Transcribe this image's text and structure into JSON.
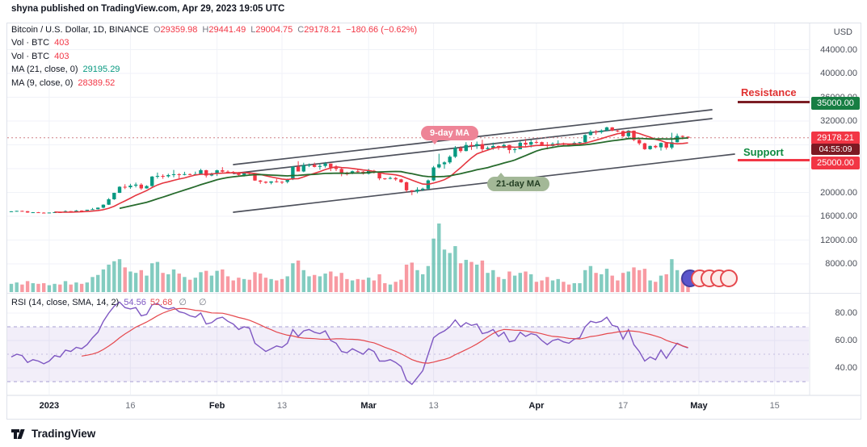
{
  "attribution": "shyna published on TradingView.com, Apr 29, 2023 19:05 UTC",
  "header": {
    "title": "Bitcoin / U.S. Dollar, 1D, BINANCE",
    "ohlc": [
      {
        "k": "O",
        "v": "29359.98"
      },
      {
        "k": "H",
        "v": "29441.49"
      },
      {
        "k": "L",
        "v": "29004.75"
      },
      {
        "k": "C",
        "v": "29178.21"
      }
    ],
    "change": "−180.66 (−0.62%)"
  },
  "legend_rows": [
    {
      "label": "Vol · BTC",
      "value": "403",
      "color": "#f23645"
    },
    {
      "label": "Vol · BTC",
      "value": "403",
      "color": "#f23645"
    },
    {
      "label": "MA (21, close, 0)",
      "value": "29195.29",
      "color": "#089981"
    },
    {
      "label": "MA (9, close, 0)",
      "value": "28389.52",
      "color": "#f23645"
    }
  ],
  "annotations": {
    "ma9_badge": "9-day MA",
    "ma21_badge": "21-day MA",
    "resistance_label": "Resistance",
    "support_label": "Support"
  },
  "price_axis": {
    "unit": "USD",
    "labels": [
      "44000.00",
      "40000.00",
      "36000.00",
      "32000.00",
      "20000.00",
      "16000.00",
      "12000.00",
      "8000.00"
    ],
    "last_price": "29178.21",
    "countdown": "04:55:09",
    "resistance_badge": "35000.00",
    "support_badge": "25000.00"
  },
  "rsi_pane": {
    "legend": "RSI (14, close, SMA, 14, 2)",
    "value": "54.56",
    "signal": "52.68",
    "empties": "∅ ∅",
    "labels": [
      "80.00",
      "60.00",
      "40.00"
    ]
  },
  "time_axis": [
    {
      "t": "2023",
      "d": 0,
      "major": true
    },
    {
      "t": "16",
      "d": 15,
      "major": false
    },
    {
      "t": "Feb",
      "d": 31,
      "major": true
    },
    {
      "t": "13",
      "d": 43,
      "major": false
    },
    {
      "t": "Mar",
      "d": 59,
      "major": true
    },
    {
      "t": "13",
      "d": 71,
      "major": false
    },
    {
      "t": "Apr",
      "d": 90,
      "major": true
    },
    {
      "t": "17",
      "d": 106,
      "major": false
    },
    {
      "t": "May",
      "d": 120,
      "major": true
    },
    {
      "t": "15",
      "d": 134,
      "major": false
    }
  ],
  "footer": {
    "brand": "TradingView"
  },
  "chart_data": {
    "type": "candlestick",
    "title": "Bitcoin / U.S. Dollar, 1D, BINANCE",
    "interval": "1D",
    "start_date": "2022-12-25",
    "price_range": [
      8000,
      44000
    ],
    "price_axis_ticks": [
      44000,
      40000,
      36000,
      32000,
      28000,
      24000,
      20000,
      16000,
      12000,
      8000
    ],
    "columns": [
      "open",
      "high",
      "low",
      "close",
      "volume_rel"
    ],
    "candles": [
      [
        16780,
        16850,
        16720,
        16830,
        12
      ],
      [
        16830,
        16920,
        16790,
        16900,
        14
      ],
      [
        16900,
        16950,
        16800,
        16850,
        11
      ],
      [
        16850,
        16880,
        16580,
        16620,
        16
      ],
      [
        16620,
        16700,
        16560,
        16670,
        13
      ],
      [
        16670,
        16720,
        16600,
        16600,
        12
      ],
      [
        16600,
        16680,
        16520,
        16540,
        13
      ],
      [
        16540,
        16630,
        16500,
        16620,
        10
      ],
      [
        16620,
        16760,
        16550,
        16680,
        12
      ],
      [
        16680,
        16770,
        16600,
        16670,
        11
      ],
      [
        16670,
        16990,
        16650,
        16860,
        16
      ],
      [
        16860,
        16880,
        16750,
        16840,
        11
      ],
      [
        16840,
        17040,
        16790,
        16950,
        14
      ],
      [
        16950,
        17000,
        16820,
        16940,
        12
      ],
      [
        16940,
        17090,
        16910,
        17090,
        14
      ],
      [
        17090,
        17390,
        17080,
        17180,
        22
      ],
      [
        17180,
        17480,
        17130,
        17440,
        25
      ],
      [
        17440,
        18000,
        17310,
        17940,
        33
      ],
      [
        17940,
        19050,
        17890,
        18850,
        40
      ],
      [
        18850,
        19950,
        18750,
        19930,
        45
      ],
      [
        19930,
        21050,
        19890,
        20950,
        48
      ],
      [
        20950,
        21380,
        20560,
        20870,
        36
      ],
      [
        20870,
        21450,
        20610,
        21140,
        30
      ],
      [
        21140,
        21650,
        20850,
        21310,
        28
      ],
      [
        21310,
        21550,
        20430,
        20680,
        32
      ],
      [
        20680,
        21200,
        20650,
        21080,
        24
      ],
      [
        21080,
        22750,
        20900,
        22670,
        42
      ],
      [
        22670,
        23340,
        22330,
        22780,
        44
      ],
      [
        22780,
        23050,
        22300,
        22710,
        28
      ],
      [
        22710,
        23150,
        22480,
        22920,
        26
      ],
      [
        22920,
        23780,
        22550,
        23060,
        33
      ],
      [
        23060,
        23240,
        22350,
        23010,
        27
      ],
      [
        23010,
        23470,
        22870,
        23080,
        22
      ],
      [
        23080,
        23190,
        22890,
        23030,
        18
      ],
      [
        23030,
        23500,
        22960,
        23080,
        21
      ],
      [
        23080,
        23960,
        23070,
        23740,
        29
      ],
      [
        23740,
        23800,
        22500,
        22840,
        31
      ],
      [
        22840,
        23320,
        22720,
        23130,
        24
      ],
      [
        23130,
        23810,
        22760,
        23720,
        31
      ],
      [
        23720,
        24250,
        23370,
        23490,
        33
      ],
      [
        23490,
        23710,
        23190,
        23430,
        23
      ],
      [
        23430,
        23590,
        23240,
        23330,
        17
      ],
      [
        23330,
        23430,
        22750,
        22950,
        21
      ],
      [
        22950,
        23340,
        22680,
        23270,
        19
      ],
      [
        23270,
        23450,
        22880,
        23220,
        18
      ],
      [
        23220,
        23250,
        21950,
        22000,
        29
      ],
      [
        22000,
        22090,
        21450,
        21800,
        27
      ],
      [
        21800,
        21890,
        21480,
        21630,
        21
      ],
      [
        21630,
        21870,
        21360,
        21860,
        19
      ],
      [
        21860,
        22280,
        21650,
        21790,
        17
      ],
      [
        21790,
        21900,
        21420,
        21770,
        19
      ],
      [
        21770,
        22320,
        21530,
        22200,
        23
      ],
      [
        22200,
        24380,
        22080,
        24330,
        42
      ],
      [
        24330,
        25250,
        23830,
        23520,
        46
      ],
      [
        23520,
        24990,
        23400,
        24570,
        32
      ],
      [
        24570,
        24870,
        24250,
        24630,
        23
      ],
      [
        24630,
        25020,
        24200,
        24290,
        25
      ],
      [
        24290,
        24900,
        23810,
        24450,
        23
      ],
      [
        24450,
        25120,
        24170,
        24850,
        27
      ],
      [
        24850,
        24880,
        23580,
        24180,
        30
      ],
      [
        24180,
        24600,
        23600,
        23940,
        23
      ],
      [
        23940,
        24130,
        22720,
        23190,
        28
      ],
      [
        23190,
        23470,
        22850,
        23160,
        19
      ],
      [
        23160,
        23680,
        23070,
        23560,
        17
      ],
      [
        23560,
        23920,
        23180,
        23490,
        19
      ],
      [
        23490,
        23600,
        23020,
        23150,
        18
      ],
      [
        23150,
        23980,
        23020,
        23640,
        21
      ],
      [
        23640,
        23790,
        23180,
        23470,
        17
      ],
      [
        23470,
        23520,
        22060,
        22360,
        26
      ],
      [
        22360,
        22410,
        22130,
        22350,
        13
      ],
      [
        22350,
        22660,
        22210,
        22430,
        11
      ],
      [
        22430,
        22600,
        21950,
        22200,
        15
      ],
      [
        22200,
        22290,
        21620,
        21710,
        18
      ],
      [
        21710,
        21830,
        20050,
        20360,
        40
      ],
      [
        20360,
        20370,
        19550,
        20150,
        43
      ],
      [
        20150,
        20870,
        19870,
        20470,
        32
      ],
      [
        20470,
        20800,
        20250,
        20630,
        26
      ],
      [
        20630,
        22180,
        20450,
        22020,
        38
      ],
      [
        22020,
        24450,
        21900,
        24200,
        78
      ],
      [
        24200,
        26500,
        24050,
        24740,
        100
      ],
      [
        24740,
        25240,
        23980,
        25050,
        62
      ],
      [
        25050,
        26240,
        24800,
        26000,
        57
      ],
      [
        26000,
        27800,
        25790,
        27450,
        67
      ],
      [
        27450,
        27760,
        26680,
        26960,
        42
      ],
      [
        26960,
        28440,
        26900,
        27970,
        47
      ],
      [
        27970,
        28470,
        27150,
        27790,
        44
      ],
      [
        27790,
        28550,
        27320,
        28120,
        40
      ],
      [
        28120,
        28850,
        26830,
        27280,
        46
      ],
      [
        27280,
        27740,
        27050,
        27470,
        28
      ],
      [
        27470,
        28370,
        27170,
        27800,
        32
      ],
      [
        27800,
        27860,
        27150,
        27490,
        22
      ],
      [
        27490,
        28190,
        27420,
        27980,
        19
      ],
      [
        27980,
        28020,
        26550,
        27130,
        30
      ],
      [
        27130,
        27490,
        26640,
        27270,
        24
      ],
      [
        27270,
        28650,
        27250,
        28350,
        28
      ],
      [
        28350,
        29000,
        27700,
        28040,
        30
      ],
      [
        28040,
        28810,
        27560,
        28470,
        26
      ],
      [
        28470,
        28810,
        28160,
        28460,
        15
      ],
      [
        28460,
        28540,
        27870,
        27940,
        17
      ],
      [
        27940,
        28480,
        27250,
        27810,
        22
      ],
      [
        27810,
        28430,
        27670,
        28170,
        17
      ],
      [
        28170,
        28760,
        27820,
        28250,
        19
      ],
      [
        28250,
        28370,
        27750,
        28030,
        15
      ],
      [
        28030,
        28110,
        27790,
        27920,
        11
      ],
      [
        27920,
        28540,
        27880,
        28330,
        13
      ],
      [
        28330,
        28500,
        27930,
        28440,
        13
      ],
      [
        28440,
        29770,
        28190,
        29640,
        32
      ],
      [
        29640,
        30510,
        29580,
        30210,
        38
      ],
      [
        30210,
        30490,
        29680,
        30130,
        28
      ],
      [
        30130,
        30590,
        29880,
        30400,
        26
      ],
      [
        30400,
        31050,
        30290,
        30930,
        34
      ],
      [
        30930,
        30990,
        30270,
        30390,
        24
      ],
      [
        30390,
        30580,
        30130,
        30310,
        17
      ],
      [
        30310,
        30420,
        29280,
        29450,
        28
      ],
      [
        29450,
        30480,
        29110,
        30380,
        30
      ],
      [
        30380,
        30400,
        28620,
        28820,
        36
      ],
      [
        28820,
        29080,
        27960,
        28250,
        32
      ],
      [
        28250,
        28350,
        27150,
        27270,
        34
      ],
      [
        27270,
        27870,
        27170,
        27820,
        17
      ],
      [
        27820,
        27980,
        27410,
        27590,
        15
      ],
      [
        27590,
        28390,
        27040,
        28310,
        24
      ],
      [
        28310,
        28380,
        27210,
        27540,
        26
      ],
      [
        27540,
        30030,
        27250,
        28440,
        48
      ],
      [
        28440,
        29890,
        28380,
        29490,
        32
      ],
      [
        29490,
        29590,
        28930,
        29340,
        21
      ],
      [
        29359.98,
        29441.49,
        29004.75,
        29178.21,
        18
      ]
    ],
    "moving_averages": [
      {
        "name": "MA9",
        "period": 9,
        "color": "#e5353f",
        "last": 28389.52
      },
      {
        "name": "MA21",
        "period": 21,
        "color": "#276b2d",
        "last": 29195.29
      }
    ],
    "volume_colors": {
      "up": "rgba(8,153,129,0.5)",
      "down": "rgba(242,54,69,0.5)"
    },
    "candle_colors": {
      "up": "#089981",
      "down": "#f23645"
    },
    "last_close": 29178.21,
    "rsi": {
      "period": 14,
      "sma": 14,
      "color": "#7e57c2",
      "signal_color": "#e5484d",
      "hlines": [
        70,
        50,
        30
      ],
      "axis_ticks": [
        80,
        60,
        40
      ],
      "last": 54.56,
      "signal_last": 52.68,
      "values": [
        48,
        50,
        49,
        44,
        46,
        45,
        43,
        45,
        49,
        48,
        53,
        52,
        55,
        54,
        57,
        62,
        66,
        74,
        80,
        85,
        88,
        84,
        83,
        84,
        78,
        79,
        86,
        87,
        84,
        83,
        84,
        81,
        80,
        78,
        77,
        80,
        72,
        73,
        76,
        77,
        74,
        72,
        68,
        70,
        69,
        58,
        55,
        52,
        54,
        56,
        55,
        58,
        68,
        63,
        67,
        68,
        66,
        65,
        67,
        60,
        58,
        52,
        51,
        54,
        52,
        50,
        54,
        52,
        45,
        45,
        46,
        44,
        41,
        31,
        28,
        33,
        38,
        50,
        62,
        65,
        67,
        70,
        75,
        70,
        73,
        71,
        72,
        65,
        66,
        68,
        63,
        66,
        59,
        60,
        66,
        63,
        65,
        64,
        60,
        57,
        60,
        61,
        59,
        58,
        61,
        62,
        70,
        74,
        73,
        74,
        77,
        71,
        70,
        61,
        68,
        57,
        52,
        45,
        48,
        46,
        53,
        47,
        53,
        58,
        56,
        54.56
      ]
    }
  }
}
